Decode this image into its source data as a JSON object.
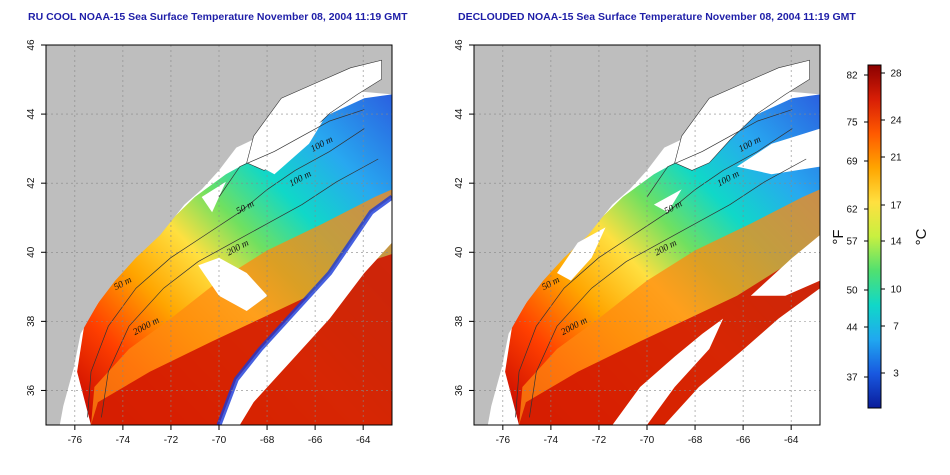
{
  "titles": {
    "left": "RU COOL NOAA-15 Sea Surface Temperature November 08, 2004 11:19 GMT",
    "right": "DECLOUDED NOAA-15 Sea Surface Temperature November 08, 2004 11:19 GMT"
  },
  "axes": {
    "lon_ticks": [
      "-76",
      "-74",
      "-72",
      "-70",
      "-68",
      "-66",
      "-64"
    ],
    "lat_ticks": [
      "36",
      "38",
      "40",
      "42",
      "44",
      "46"
    ],
    "lon_range": [
      -77.2,
      -62.8
    ],
    "lat_range": [
      35.0,
      46.0
    ]
  },
  "contours": [
    {
      "label": "100 m",
      "lon": -66.1,
      "lat": 42.9
    },
    {
      "label": "100 m",
      "lon": -67.0,
      "lat": 41.9
    },
    {
      "label": "50 m",
      "lon": -69.2,
      "lat": 41.1
    },
    {
      "label": "200 m",
      "lon": -69.6,
      "lat": 39.9
    },
    {
      "label": "50 m",
      "lon": -74.3,
      "lat": 38.9
    },
    {
      "label": "2000 m",
      "lon": -73.5,
      "lat": 37.6
    }
  ],
  "colorbar": {
    "fahrenheit_ticks": [
      "82",
      "75",
      "69",
      "62",
      "57",
      "50",
      "44",
      "37"
    ],
    "celsius_ticks": [
      "28",
      "24",
      "21",
      "17",
      "14",
      "10",
      "7",
      "3"
    ],
    "fahrenheit_label": "°F",
    "celsius_label": "°C",
    "colors": [
      "#8b0000",
      "#d81e06",
      "#ff5a00",
      "#ffa500",
      "#ffe040",
      "#c8f040",
      "#50e070",
      "#10d8c8",
      "#20a8f0",
      "#1858e0",
      "#0a1c9a"
    ]
  },
  "colors": {
    "land": "#bebebe",
    "cloud": "#ffffff"
  }
}
